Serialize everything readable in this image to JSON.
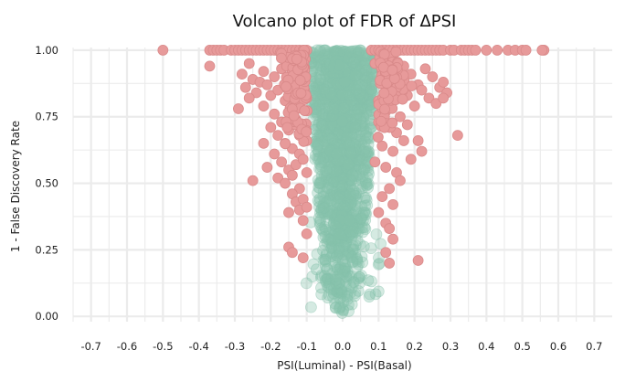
{
  "chart_data": {
    "type": "scatter",
    "title": "Volcano plot of FDR of ΔPSI",
    "xlabel": "PSI(Luminal) - PSI(Basal)",
    "ylabel": "1 - False Discovery Rate",
    "xlim": [
      -0.75,
      0.75
    ],
    "ylim": [
      -0.02,
      1.01
    ],
    "x_ticks": [
      "-0.7",
      "-0.6",
      "-0.5",
      "-0.4",
      "-0.3",
      "-0.2",
      "-0.1",
      "0.0",
      "0.1",
      "0.2",
      "0.3",
      "0.4",
      "0.5",
      "0.6",
      "0.7"
    ],
    "y_ticks": [
      "0.00",
      "0.25",
      "0.50",
      "0.75",
      "1.00"
    ],
    "grid": true,
    "legend": "none",
    "colors": {
      "significant": "#e79a9a",
      "significant_edge": "#d98a8a",
      "not_significant": "#86c2ab",
      "grid": "#ebebeb"
    },
    "series": [
      {
        "points": [
          [
            -0.5,
            1.0
          ],
          [
            -0.37,
            1.0
          ],
          [
            -0.36,
            1.0
          ],
          [
            -0.35,
            1.0
          ],
          [
            -0.34,
            1.0
          ],
          [
            -0.33,
            1.0
          ],
          [
            -0.31,
            1.0
          ],
          [
            -0.3,
            1.0
          ],
          [
            -0.29,
            1.0
          ],
          [
            -0.28,
            1.0
          ],
          [
            -0.27,
            1.0
          ],
          [
            -0.26,
            1.0
          ],
          [
            -0.25,
            1.0
          ],
          [
            -0.24,
            1.0
          ],
          [
            -0.23,
            1.0
          ],
          [
            -0.22,
            1.0
          ],
          [
            -0.21,
            1.0
          ],
          [
            -0.2,
            1.0
          ],
          [
            -0.19,
            1.0
          ],
          [
            -0.18,
            1.0
          ],
          [
            -0.17,
            1.0
          ],
          [
            -0.16,
            1.0
          ],
          [
            -0.15,
            1.0
          ],
          [
            -0.14,
            1.0
          ],
          [
            -0.13,
            1.0
          ],
          [
            -0.12,
            1.0
          ],
          [
            -0.11,
            1.0
          ],
          [
            -0.1,
            1.0
          ],
          [
            -0.37,
            0.94
          ],
          [
            -0.26,
            0.95
          ],
          [
            -0.28,
            0.91
          ],
          [
            -0.27,
            0.86
          ],
          [
            -0.25,
            0.89
          ],
          [
            -0.23,
            0.88
          ],
          [
            -0.24,
            0.84
          ],
          [
            -0.22,
            0.92
          ],
          [
            -0.21,
            0.87
          ],
          [
            -0.2,
            0.83
          ],
          [
            -0.19,
            0.9
          ],
          [
            -0.18,
            0.85
          ],
          [
            -0.17,
            0.93
          ],
          [
            -0.16,
            0.81
          ],
          [
            -0.15,
            0.88
          ],
          [
            -0.14,
            0.84
          ],
          [
            -0.13,
            0.91
          ],
          [
            -0.12,
            0.79
          ],
          [
            -0.11,
            0.86
          ],
          [
            -0.1,
            0.82
          ],
          [
            -0.26,
            0.82
          ],
          [
            -0.29,
            0.78
          ],
          [
            -0.22,
            0.79
          ],
          [
            -0.19,
            0.76
          ],
          [
            -0.17,
            0.73
          ],
          [
            -0.15,
            0.7
          ],
          [
            -0.13,
            0.74
          ],
          [
            -0.12,
            0.68
          ],
          [
            -0.11,
            0.72
          ],
          [
            -0.1,
            0.66
          ],
          [
            -0.2,
            0.71
          ],
          [
            -0.18,
            0.68
          ],
          [
            -0.16,
            0.65
          ],
          [
            -0.14,
            0.63
          ],
          [
            -0.12,
            0.61
          ],
          [
            -0.22,
            0.65
          ],
          [
            -0.19,
            0.61
          ],
          [
            -0.21,
            0.56
          ],
          [
            -0.17,
            0.58
          ],
          [
            -0.15,
            0.55
          ],
          [
            -0.13,
            0.57
          ],
          [
            -0.11,
            0.59
          ],
          [
            -0.1,
            0.54
          ],
          [
            -0.25,
            0.51
          ],
          [
            -0.18,
            0.52
          ],
          [
            -0.16,
            0.5
          ],
          [
            -0.14,
            0.53
          ],
          [
            -0.12,
            0.48
          ],
          [
            -0.14,
            0.46
          ],
          [
            -0.13,
            0.43
          ],
          [
            -0.11,
            0.44
          ],
          [
            -0.12,
            0.4
          ],
          [
            -0.15,
            0.39
          ],
          [
            -0.11,
            0.36
          ],
          [
            -0.1,
            0.41
          ],
          [
            -0.1,
            0.31
          ],
          [
            -0.15,
            0.26
          ],
          [
            -0.14,
            0.24
          ],
          [
            -0.11,
            0.22
          ],
          [
            0.08,
            1.0
          ],
          [
            0.09,
            1.0
          ],
          [
            0.1,
            1.0
          ],
          [
            0.11,
            1.0
          ],
          [
            0.12,
            1.0
          ],
          [
            0.13,
            1.0
          ],
          [
            0.14,
            1.0
          ],
          [
            0.15,
            1.0
          ],
          [
            0.16,
            1.0
          ],
          [
            0.17,
            1.0
          ],
          [
            0.18,
            1.0
          ],
          [
            0.19,
            1.0
          ],
          [
            0.2,
            1.0
          ],
          [
            0.21,
            1.0
          ],
          [
            0.22,
            1.0
          ],
          [
            0.23,
            1.0
          ],
          [
            0.24,
            1.0
          ],
          [
            0.25,
            1.0
          ],
          [
            0.26,
            1.0
          ],
          [
            0.27,
            1.0
          ],
          [
            0.28,
            1.0
          ],
          [
            0.3,
            1.0
          ],
          [
            0.31,
            1.0
          ],
          [
            0.33,
            1.0
          ],
          [
            0.34,
            1.0
          ],
          [
            0.35,
            1.0
          ],
          [
            0.36,
            1.0
          ],
          [
            0.37,
            1.0
          ],
          [
            0.4,
            1.0
          ],
          [
            0.43,
            1.0
          ],
          [
            0.46,
            1.0
          ],
          [
            0.48,
            1.0
          ],
          [
            0.5,
            1.0
          ],
          [
            0.51,
            1.0
          ],
          [
            0.56,
            1.0
          ],
          [
            0.555,
            1.0
          ],
          [
            0.09,
            0.95
          ],
          [
            0.11,
            0.92
          ],
          [
            0.13,
            0.96
          ],
          [
            0.15,
            0.89
          ],
          [
            0.17,
            0.94
          ],
          [
            0.19,
            0.91
          ],
          [
            0.21,
            0.87
          ],
          [
            0.23,
            0.93
          ],
          [
            0.25,
            0.9
          ],
          [
            0.27,
            0.86
          ],
          [
            0.28,
            0.88
          ],
          [
            0.29,
            0.84
          ],
          [
            0.22,
            0.85
          ],
          [
            0.18,
            0.83
          ],
          [
            0.14,
            0.86
          ],
          [
            0.1,
            0.81
          ],
          [
            0.24,
            0.82
          ],
          [
            0.26,
            0.8
          ],
          [
            0.28,
            0.82
          ],
          [
            0.2,
            0.79
          ],
          [
            0.12,
            0.77
          ],
          [
            0.16,
            0.75
          ],
          [
            0.1,
            0.73
          ],
          [
            0.13,
            0.71
          ],
          [
            0.15,
            0.69
          ],
          [
            0.18,
            0.72
          ],
          [
            0.21,
            0.66
          ],
          [
            0.11,
            0.64
          ],
          [
            0.14,
            0.62
          ],
          [
            0.17,
            0.66
          ],
          [
            0.19,
            0.59
          ],
          [
            0.09,
            0.58
          ],
          [
            0.12,
            0.56
          ],
          [
            0.15,
            0.54
          ],
          [
            0.16,
            0.51
          ],
          [
            0.13,
            0.48
          ],
          [
            0.11,
            0.45
          ],
          [
            0.14,
            0.42
          ],
          [
            0.1,
            0.39
          ],
          [
            0.12,
            0.35
          ],
          [
            0.13,
            0.33
          ],
          [
            0.14,
            0.29
          ],
          [
            0.12,
            0.24
          ],
          [
            0.13,
            0.2
          ],
          [
            0.21,
            0.21
          ],
          [
            0.32,
            0.68
          ],
          [
            0.22,
            0.62
          ]
        ]
      },
      {
        "points": []
      }
    ]
  }
}
